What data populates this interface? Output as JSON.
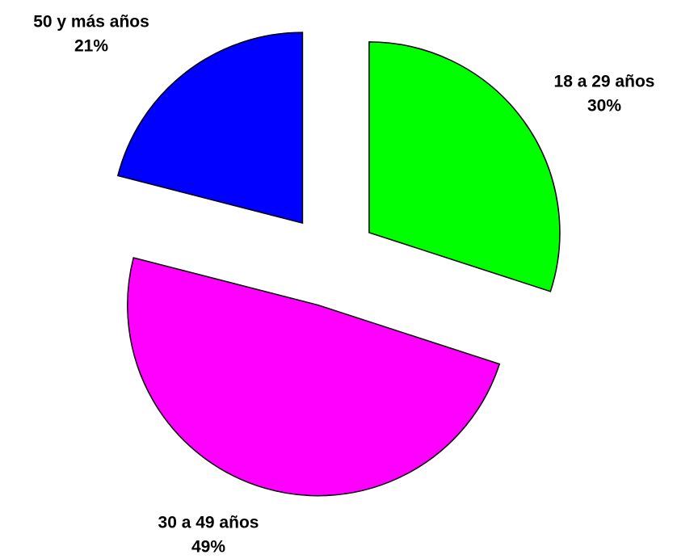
{
  "chart_data": {
    "type": "pie",
    "categories": [
      "18 a 29 años",
      "30 a 49 años",
      "50 y más años"
    ],
    "values": [
      30,
      49,
      21
    ],
    "value_labels": [
      "30%",
      "49%",
      "21%"
    ],
    "colors": [
      "#00ff00",
      "#ff00ff",
      "#0000ff"
    ],
    "exploded": true
  }
}
